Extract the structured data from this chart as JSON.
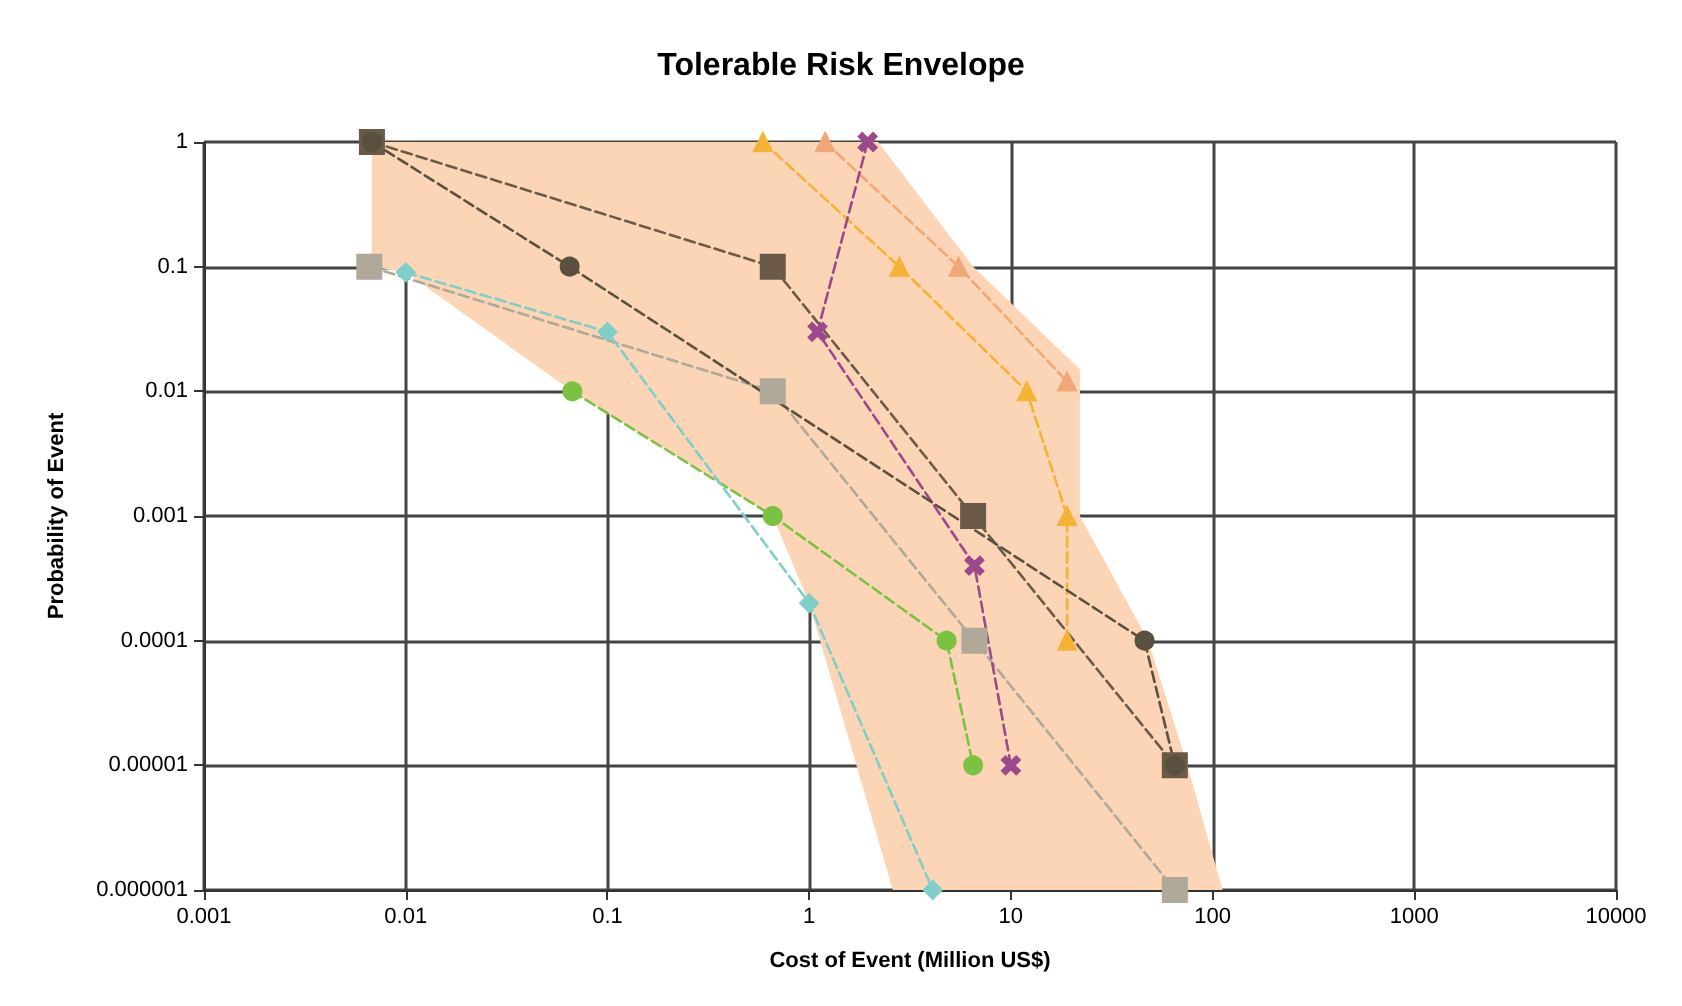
{
  "chart_data": {
    "type": "line",
    "title": "Tolerable Risk Envelope",
    "xlabel": "Cost of Event (Million US$)",
    "ylabel": "Probability of Event",
    "log": "xy",
    "grid": true,
    "line_style": "dashed",
    "xlim": [
      0.001,
      10000
    ],
    "xticks": [
      0.001,
      0.01,
      0.1,
      1,
      10,
      100,
      1000,
      10000
    ],
    "ylim": [
      1e-06,
      1
    ],
    "yticks": [
      1,
      0.1,
      0.01,
      0.001,
      0.0001,
      {
        "value": 1e-05,
        "label": "0.00001"
      },
      {
        "value": 1e-06,
        "label": "0.000001"
      }
    ],
    "series": [
      {
        "type": "area",
        "color": "#fbd5b5",
        "x": [
          0.0068,
          2.2,
          6.5,
          22,
          22,
          48,
          75,
          112,
          2.6,
          1.0,
          0.66,
          0.067,
          0.01,
          0.0068
        ],
        "values": [
          1,
          1,
          0.1,
          0.015,
          0.001,
          0.0001,
          1e-05,
          1e-06,
          1e-06,
          0.0002,
          0.001,
          0.01,
          0.09,
          0.1
        ]
      },
      {
        "color": "#6b5a48",
        "marker": "square",
        "x": [
          0.0068,
          0.66,
          6.5,
          65
        ],
        "values": [
          1,
          0.1,
          0.001,
          1e-05
        ]
      },
      {
        "color": "#b0a898",
        "marker": "square",
        "x": [
          0.0066,
          0.66,
          6.6,
          65
        ],
        "values": [
          0.1,
          0.01,
          0.0001,
          1e-06
        ]
      },
      {
        "color": "#7cc242",
        "marker": "circle",
        "x": [
          0.067,
          0.66,
          4.8,
          6.5
        ],
        "values": [
          0.01,
          0.001,
          0.0001,
          1e-05
        ]
      },
      {
        "color": "#7fcfc8",
        "marker": "diamond",
        "x": [
          0.01,
          0.1,
          1.0,
          4.1
        ],
        "values": [
          0.09,
          0.03,
          0.0002,
          1e-06
        ]
      },
      {
        "color": "#f5b335",
        "marker": "triangle",
        "x": [
          0.59,
          2.8,
          12,
          19,
          19
        ],
        "values": [
          1,
          0.1,
          0.01,
          0.001,
          0.0001
        ]
      },
      {
        "color": "#f0a878",
        "marker": "triangle",
        "x": [
          1.2,
          5.5,
          19
        ],
        "values": [
          1,
          0.1,
          0.012
        ]
      },
      {
        "color": "#9a4a8a",
        "marker": "cross",
        "x": [
          1.95,
          1.1,
          6.6,
          10
        ],
        "values": [
          1,
          0.03,
          0.0004,
          1e-05
        ]
      },
      {
        "color": "#5a5040",
        "marker": "circle",
        "x": [
          0.0068,
          0.065,
          46,
          65
        ],
        "values": [
          1,
          0.1,
          0.0001,
          1e-05
        ]
      }
    ]
  }
}
